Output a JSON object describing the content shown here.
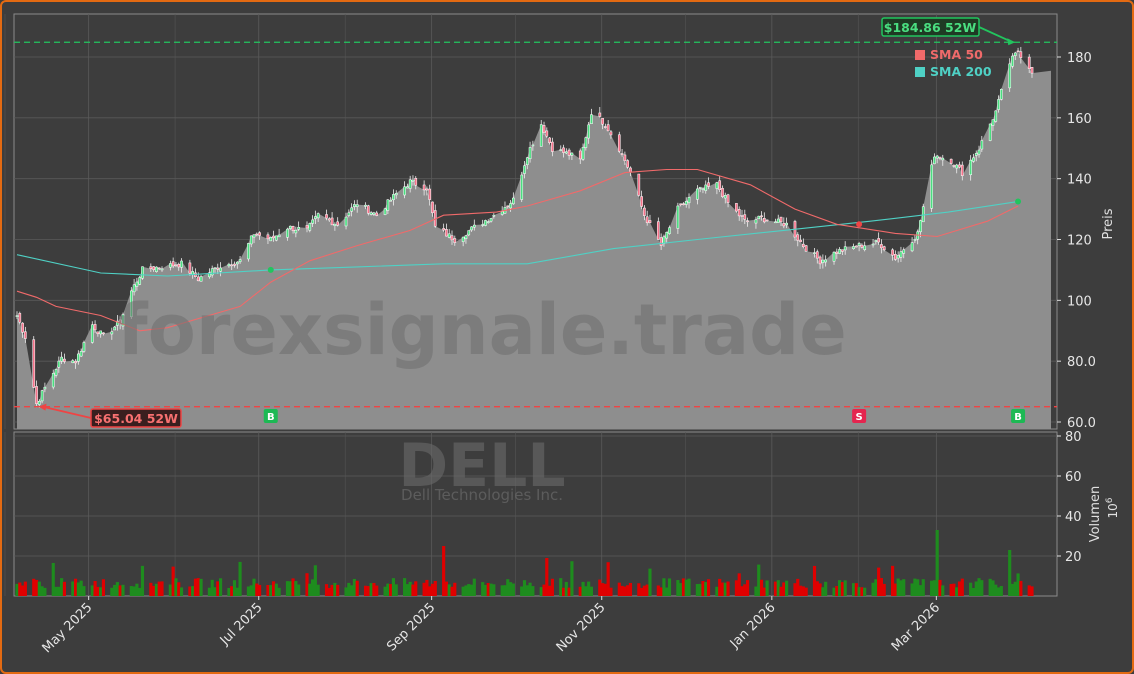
{
  "chart_data": [
    {
      "type": "candlestick",
      "ticker": "DELL",
      "company": "Dell Technologies Inc.",
      "watermark": "forexsignale.trade",
      "ylabel": "Preis",
      "ylim": [
        58,
        195
      ],
      "yticks": [
        "60.0",
        "80.0",
        "100",
        "120",
        "140",
        "160",
        "180"
      ],
      "xlabels": [
        "May 2025",
        "Jul 2025",
        "Sep 2025",
        "Nov 2025",
        "Jan 2026",
        "Mar 2026"
      ],
      "x_range": [
        "2025-04-01",
        "2026-03-31"
      ],
      "legend": [
        {
          "name": "SMA 50",
          "color": "#f06a6a"
        },
        {
          "name": "SMA 200",
          "color": "#4fd1c5"
        }
      ],
      "legend_placement": "top-right",
      "high_52w": {
        "label": "$184.86 52W",
        "value": 184.86,
        "date": "2026-03-25"
      },
      "low_52w": {
        "label": "$65.04 52W",
        "value": 65.04,
        "date": "2025-04-08"
      },
      "last_close": 175.5,
      "signals": [
        {
          "label": "B",
          "type": "buy",
          "date": "2025-07-01",
          "price": 110
        },
        {
          "label": "S",
          "type": "sell",
          "date": "2026-01-28",
          "price": 125
        },
        {
          "label": "B",
          "type": "buy",
          "date": "2026-03-26",
          "price": 132.5
        }
      ],
      "price_path": [
        [
          "2025-04-01",
          95
        ],
        [
          "2025-04-04",
          88
        ],
        [
          "2025-04-08",
          66
        ],
        [
          "2025-04-12",
          73
        ],
        [
          "2025-04-17",
          81
        ],
        [
          "2025-04-22",
          80
        ],
        [
          "2025-04-28",
          92
        ],
        [
          "2025-05-02",
          88
        ],
        [
          "2025-05-08",
          93
        ],
        [
          "2025-05-12",
          103
        ],
        [
          "2025-05-16",
          110
        ],
        [
          "2025-05-22",
          111
        ],
        [
          "2025-05-30",
          112
        ],
        [
          "2025-06-05",
          107
        ],
        [
          "2025-06-12",
          111
        ],
        [
          "2025-06-20",
          113
        ],
        [
          "2025-06-25",
          122
        ],
        [
          "2025-07-01",
          120
        ],
        [
          "2025-07-07",
          124
        ],
        [
          "2025-07-14",
          123
        ],
        [
          "2025-07-18",
          128
        ],
        [
          "2025-07-25",
          125
        ],
        [
          "2025-08-01",
          132
        ],
        [
          "2025-08-08",
          128
        ],
        [
          "2025-08-15",
          135
        ],
        [
          "2025-08-20",
          139
        ],
        [
          "2025-08-26",
          137
        ],
        [
          "2025-08-29",
          124
        ],
        [
          "2025-09-05",
          120
        ],
        [
          "2025-09-12",
          124
        ],
        [
          "2025-09-19",
          128
        ],
        [
          "2025-09-26",
          133
        ],
        [
          "2025-10-01",
          148
        ],
        [
          "2025-10-06",
          158
        ],
        [
          "2025-10-10",
          150
        ],
        [
          "2025-10-16",
          148
        ],
        [
          "2025-10-20",
          146
        ],
        [
          "2025-10-24",
          162
        ],
        [
          "2025-10-29",
          158
        ],
        [
          "2025-11-03",
          150
        ],
        [
          "2025-11-07",
          142
        ],
        [
          "2025-11-12",
          128
        ],
        [
          "2025-11-18",
          118
        ],
        [
          "2025-11-24",
          130
        ],
        [
          "2025-12-01",
          136
        ],
        [
          "2025-12-08",
          138
        ],
        [
          "2025-12-12",
          132
        ],
        [
          "2025-12-18",
          126
        ],
        [
          "2025-12-24",
          127
        ],
        [
          "2026-01-02",
          125
        ],
        [
          "2026-01-08",
          118
        ],
        [
          "2026-01-14",
          113
        ],
        [
          "2026-01-20",
          116
        ],
        [
          "2026-01-28",
          118
        ],
        [
          "2026-02-04",
          119
        ],
        [
          "2026-02-10",
          114
        ],
        [
          "2026-02-18",
          122
        ],
        [
          "2026-02-24",
          148
        ],
        [
          "2026-03-02",
          146
        ],
        [
          "2026-03-06",
          142
        ],
        [
          "2026-03-12",
          150
        ],
        [
          "2026-03-18",
          162
        ],
        [
          "2026-03-23",
          178
        ],
        [
          "2026-03-26",
          182
        ],
        [
          "2026-03-31",
          175.5
        ]
      ],
      "sma50": [
        [
          "2025-04-01",
          103
        ],
        [
          "2025-04-08",
          101
        ],
        [
          "2025-04-15",
          98
        ],
        [
          "2025-05-01",
          95
        ],
        [
          "2025-05-15",
          90
        ],
        [
          "2025-05-25",
          91
        ],
        [
          "2025-06-05",
          94
        ],
        [
          "2025-06-20",
          98
        ],
        [
          "2025-07-01",
          106
        ],
        [
          "2025-07-15",
          113
        ],
        [
          "2025-08-01",
          118
        ],
        [
          "2025-08-20",
          123
        ],
        [
          "2025-09-01",
          128
        ],
        [
          "2025-09-20",
          129
        ],
        [
          "2025-10-01",
          131
        ],
        [
          "2025-10-20",
          136
        ],
        [
          "2025-11-05",
          142
        ],
        [
          "2025-11-20",
          143
        ],
        [
          "2025-12-01",
          143
        ],
        [
          "2025-12-20",
          138
        ],
        [
          "2026-01-05",
          130
        ],
        [
          "2026-01-20",
          125
        ],
        [
          "2026-02-10",
          122
        ],
        [
          "2026-02-25",
          121
        ],
        [
          "2026-03-15",
          126
        ],
        [
          "2026-03-26",
          131
        ]
      ],
      "sma200": [
        [
          "2025-04-01",
          115
        ],
        [
          "2025-05-01",
          109
        ],
        [
          "2025-05-25",
          108
        ],
        [
          "2025-07-01",
          110
        ],
        [
          "2025-08-01",
          111
        ],
        [
          "2025-09-01",
          112
        ],
        [
          "2025-10-01",
          112
        ],
        [
          "2025-11-01",
          117
        ],
        [
          "2025-12-01",
          120
        ],
        [
          "2026-01-01",
          123
        ],
        [
          "2026-02-01",
          126
        ],
        [
          "2026-03-01",
          129
        ],
        [
          "2026-03-26",
          132.5
        ]
      ]
    },
    {
      "type": "bar",
      "ylabel": "Volumen",
      "unit": "10^6",
      "ylim": [
        0,
        85
      ],
      "yticks": [
        "20",
        "40",
        "60",
        "80"
      ],
      "up_color": "#1e8c1e",
      "down_color": "#e00000",
      "spikes": [
        {
          "date": "2025-04-06",
          "value": 31
        },
        {
          "date": "2025-06-22",
          "value": 20
        },
        {
          "date": "2025-09-01",
          "value": 25
        },
        {
          "date": "2025-10-08",
          "value": 19
        },
        {
          "date": "2026-02-25",
          "value": 33
        },
        {
          "date": "2026-03-23",
          "value": 23
        }
      ]
    }
  ]
}
